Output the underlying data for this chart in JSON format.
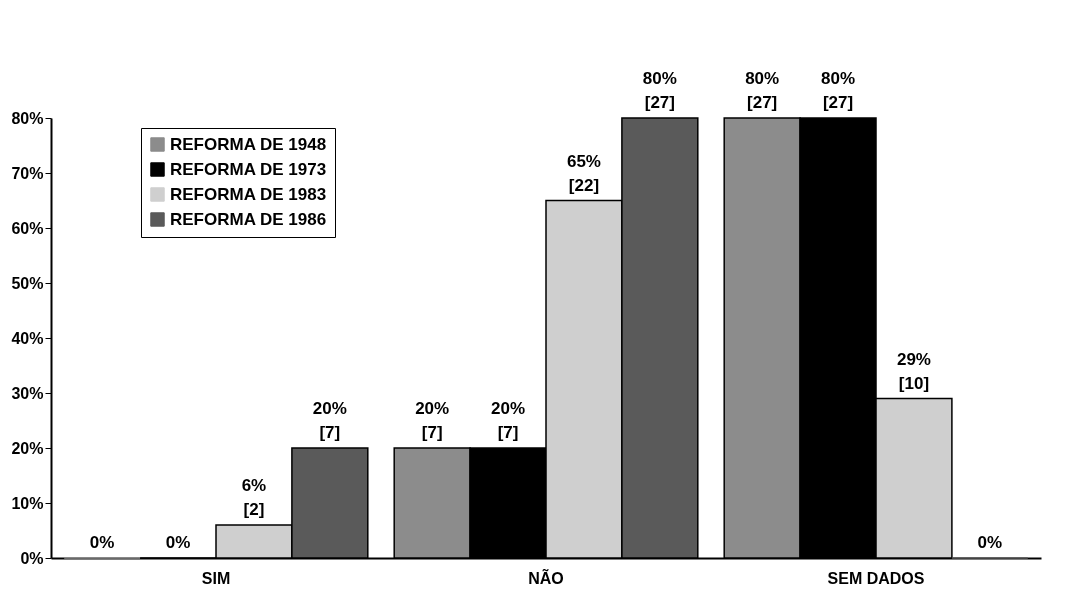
{
  "chart_data": {
    "type": "bar",
    "categories": [
      "SIM",
      "NÃO",
      "SEM DADOS"
    ],
    "series": [
      {
        "name": "REFORMA DE 1948",
        "color": "#8c8c8c",
        "values": [
          0,
          20,
          80
        ],
        "value_labels": [
          "0%",
          "20%\n[7]",
          "80%\n[27]"
        ]
      },
      {
        "name": "REFORMA DE 1973",
        "color": "#000000",
        "values": [
          0,
          20,
          80
        ],
        "value_labels": [
          "0%",
          "20%\n[7]",
          "80%\n[27]"
        ]
      },
      {
        "name": "REFORMA DE 1983",
        "color": "#cfcfcf",
        "values": [
          6,
          65,
          29
        ],
        "value_labels": [
          "6%\n[2]",
          "65%\n[22]",
          "29%\n[10]"
        ]
      },
      {
        "name": "REFORMA DE 1986",
        "color": "#5a5a5a",
        "values": [
          20,
          80,
          0
        ],
        "value_labels": [
          "20%\n[7]",
          "80%\n[27]",
          "0%"
        ]
      }
    ],
    "ylim": [
      0,
      80
    ],
    "yticks": [
      {
        "value": 0,
        "label": "0%"
      },
      {
        "value": 10,
        "label": "10%"
      },
      {
        "value": 20,
        "label": "20%"
      },
      {
        "value": 30,
        "label": "30%"
      },
      {
        "value": 40,
        "label": "40%"
      },
      {
        "value": 50,
        "label": "50%"
      },
      {
        "value": 60,
        "label": "60%"
      },
      {
        "value": 70,
        "label": "70%"
      },
      {
        "value": 80,
        "label": "80%"
      }
    ],
    "grid": false,
    "legend": "top left"
  }
}
